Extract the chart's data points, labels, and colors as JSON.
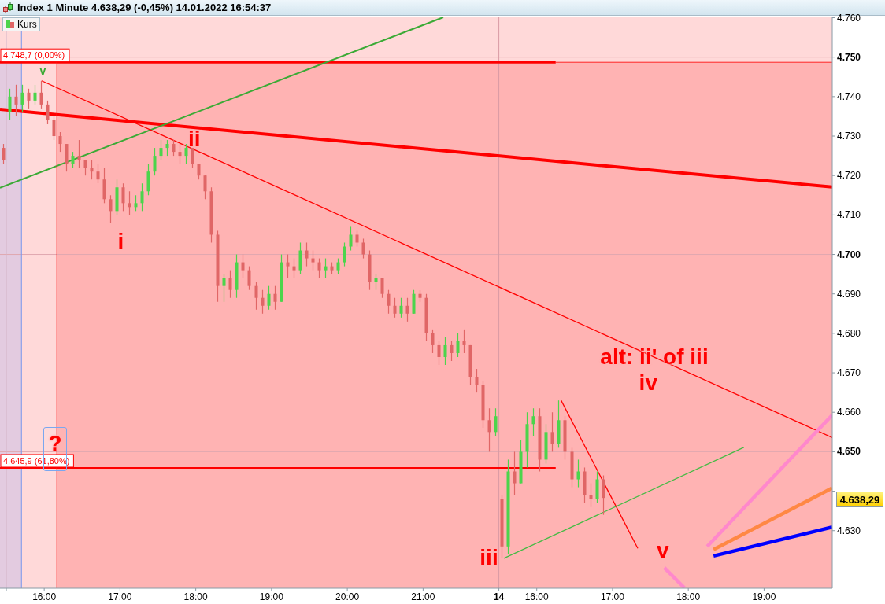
{
  "chart_data": [
    {
      "type": "candlestick",
      "title": "Index 1 Minute 4.638,29 (-0,45%) 14.01.2022 16:54:37",
      "legend": "top left",
      "tick_labels": "x",
      "xlim": [
        "2022-01-13T15:25",
        "2022-01-13T21:59"
      ],
      "xticks": [
        {
          "value": "2022-01-13T15:30",
          "label": null
        },
        {
          "value": "2022-01-13T16:00",
          "label": "16:00"
        },
        {
          "value": "2022-01-13T17:00",
          "label": "17:00"
        },
        {
          "value": "2022-01-13T18:00",
          "label": "18:00"
        },
        {
          "value": "2022-01-13T19:00",
          "label": "19:00"
        },
        {
          "value": "2022-01-13T20:00",
          "label": "20:00"
        },
        {
          "value": "2022-01-13T21:00",
          "label": "21:00"
        }
      ],
      "ylim": [
        4615.4,
        4760.3
      ],
      "series": [
        {
          "name": "Kurs",
          "x": [
            "2022-01-13T15:27",
            "2022-01-13T15:32",
            "2022-01-13T15:37",
            "2022-01-13T15:42",
            "2022-01-13T15:47",
            "2022-01-13T15:52",
            "2022-01-13T15:57",
            "2022-01-13T16:02",
            "2022-01-13T16:07",
            "2022-01-13T16:12",
            "2022-01-13T16:17",
            "2022-01-13T16:22",
            "2022-01-13T16:27",
            "2022-01-13T16:32",
            "2022-01-13T16:37",
            "2022-01-13T16:42",
            "2022-01-13T16:47",
            "2022-01-13T16:52",
            "2022-01-13T16:57",
            "2022-01-13T17:02",
            "2022-01-13T17:07",
            "2022-01-13T17:12",
            "2022-01-13T17:17",
            "2022-01-13T17:22",
            "2022-01-13T17:27",
            "2022-01-13T17:32",
            "2022-01-13T17:37",
            "2022-01-13T17:42",
            "2022-01-13T17:47",
            "2022-01-13T17:52",
            "2022-01-13T17:57",
            "2022-01-13T18:02",
            "2022-01-13T18:07",
            "2022-01-13T18:12",
            "2022-01-13T18:17",
            "2022-01-13T18:22",
            "2022-01-13T18:27",
            "2022-01-13T18:32",
            "2022-01-13T18:37",
            "2022-01-13T18:42",
            "2022-01-13T18:47",
            "2022-01-13T18:52",
            "2022-01-13T18:57",
            "2022-01-13T19:02",
            "2022-01-13T19:07",
            "2022-01-13T19:12",
            "2022-01-13T19:17",
            "2022-01-13T19:22",
            "2022-01-13T19:27",
            "2022-01-13T19:32",
            "2022-01-13T19:37",
            "2022-01-13T19:42",
            "2022-01-13T19:47",
            "2022-01-13T19:52",
            "2022-01-13T19:57",
            "2022-01-13T20:02",
            "2022-01-13T20:07",
            "2022-01-13T20:12",
            "2022-01-13T20:17",
            "2022-01-13T20:22",
            "2022-01-13T20:27",
            "2022-01-13T20:32",
            "2022-01-13T20:37",
            "2022-01-13T20:42",
            "2022-01-13T20:47",
            "2022-01-13T20:52",
            "2022-01-13T20:57",
            "2022-01-13T21:02",
            "2022-01-13T21:07",
            "2022-01-13T21:12",
            "2022-01-13T21:17",
            "2022-01-13T21:22",
            "2022-01-13T21:27",
            "2022-01-13T21:32",
            "2022-01-13T21:37",
            "2022-01-13T21:42",
            "2022-01-13T21:47",
            "2022-01-13T21:52",
            "2022-01-13T21:57"
          ],
          "ohlc": [
            [
              4727,
              4728,
              4723,
              4724
            ],
            [
              4736,
              4742,
              4734,
              4740
            ],
            [
              4740,
              4743,
              4735,
              4738
            ],
            [
              4738,
              4743,
              4736,
              4741
            ],
            [
              4741,
              4742,
              4737,
              4739
            ],
            [
              4739,
              4743,
              4738,
              4741
            ],
            [
              4741,
              4744,
              4737,
              4738
            ],
            [
              4738,
              4739,
              4733,
              4734
            ],
            [
              4734,
              4735,
              4729,
              4730
            ],
            [
              4730,
              4731,
              4726,
              4728
            ],
            [
              4728,
              4728,
              4721,
              4723
            ],
            [
              4723,
              4726,
              4722,
              4725
            ],
            [
              4725,
              4729,
              4722,
              4724
            ],
            [
              4724,
              4724,
              4720,
              4722
            ],
            [
              4722,
              4724,
              4719,
              4721
            ],
            [
              4721,
              4723,
              4718,
              4719
            ],
            [
              4719,
              4722,
              4713,
              4714
            ],
            [
              4714,
              4715,
              4708,
              4711
            ],
            [
              4711,
              4719,
              4710,
              4717
            ],
            [
              4717,
              4718,
              4711,
              4713
            ],
            [
              4713,
              4716,
              4710,
              4712
            ],
            [
              4712,
              4715,
              4711,
              4713
            ],
            [
              4713,
              4718,
              4711,
              4716
            ],
            [
              4716,
              4723,
              4715,
              4721
            ],
            [
              4721,
              4727,
              4720,
              4725
            ],
            [
              4725,
              4729,
              4724,
              4727
            ],
            [
              4727,
              4729,
              4725,
              4728
            ],
            [
              4728,
              4729,
              4725,
              4726
            ],
            [
              4726,
              4728,
              4723,
              4725
            ],
            [
              4725,
              4728,
              4723,
              4727
            ],
            [
              4727,
              4727,
              4722,
              4723
            ],
            [
              4723,
              4723,
              4719,
              4720
            ],
            [
              4720,
              4720,
              4714,
              4716
            ],
            [
              4716,
              4717,
              4703,
              4705
            ],
            [
              4705,
              4706,
              4688,
              4692
            ],
            [
              4692,
              4695,
              4688,
              4694
            ],
            [
              4694,
              4696,
              4689,
              4691
            ],
            [
              4691,
              4700,
              4689,
              4698
            ],
            [
              4698,
              4700,
              4694,
              4696
            ],
            [
              4696,
              4697,
              4691,
              4692
            ],
            [
              4692,
              4693,
              4686,
              4689
            ],
            [
              4689,
              4691,
              4685,
              4687
            ],
            [
              4687,
              4692,
              4686,
              4690
            ],
            [
              4690,
              4692,
              4686,
              4688
            ],
            [
              4688,
              4700,
              4688,
              4698
            ],
            [
              4698,
              4700,
              4694,
              4697
            ],
            [
              4697,
              4699,
              4694,
              4696
            ],
            [
              4696,
              4703,
              4695,
              4701
            ],
            [
              4701,
              4703,
              4697,
              4699
            ],
            [
              4699,
              4701,
              4696,
              4698
            ],
            [
              4698,
              4699,
              4694,
              4696
            ],
            [
              4696,
              4699,
              4694,
              4697
            ],
            [
              4697,
              4698,
              4695,
              4696
            ],
            [
              4696,
              4699,
              4695,
              4698
            ],
            [
              4698,
              4703,
              4697,
              4702
            ],
            [
              4702,
              4707,
              4701,
              4705
            ],
            [
              4705,
              4706,
              4702,
              4703
            ],
            [
              4703,
              4704,
              4699,
              4700
            ],
            [
              4700,
              4701,
              4691,
              4693
            ],
            [
              4693,
              4695,
              4691,
              4694
            ],
            [
              4694,
              4694,
              4689,
              4690
            ],
            [
              4690,
              4691,
              4685,
              4687
            ],
            [
              4687,
              4689,
              4684,
              4685
            ],
            [
              4685,
              4689,
              4684,
              4687
            ],
            [
              4687,
              4689,
              4683,
              4685
            ],
            [
              4685,
              4691,
              4685,
              4690
            ],
            [
              4690,
              4691,
              4688,
              4689
            ],
            [
              4689,
              4690,
              4678,
              4680
            ],
            [
              4680,
              4681,
              4675,
              4677
            ],
            [
              4677,
              4678,
              4672,
              4674
            ],
            [
              4674,
              4679,
              4672,
              4677
            ],
            [
              4677,
              4678,
              4673,
              4675
            ],
            [
              4675,
              4680,
              4674,
              4678
            ],
            [
              4678,
              4681,
              4675,
              4677
            ],
            [
              4677,
              4677,
              4667,
              4669
            ],
            [
              4669,
              4671,
              4665,
              4667
            ],
            [
              4667,
              4668,
              4656,
              4658
            ],
            [
              4658,
              4661,
              4650,
              4655
            ],
            [
              4655,
              4661,
              4654,
              4659
            ]
          ]
        },
        {
          "name": "4.748,7 (0,00%)",
          "type": "line",
          "color": "#ff0000",
          "x": [
            "2022-01-13T15:25",
            "2022-01-13T21:59"
          ],
          "values": [
            4748.7,
            4748.7
          ]
        },
        {
          "name": "4.645,9 (61,80%)",
          "type": "line",
          "color": "#ff0000",
          "x": [
            "2022-01-13T15:25",
            "2022-01-13T21:59"
          ],
          "values": [
            4645.9,
            4645.9
          ]
        },
        {
          "type": "line",
          "color": "#ff0000",
          "x": [
            "2022-01-13T15:25",
            "2022-01-13T21:59"
          ],
          "values": [
            4736.8,
            4725.0
          ]
        },
        {
          "type": "line",
          "color": "#3aaa35",
          "x": [
            "2022-01-13T15:25",
            "2022-01-13T21:16"
          ],
          "values": [
            4716.9,
            4760.1
          ]
        },
        {
          "type": "line",
          "color": "#ff0000",
          "x": [
            "2022-01-13T15:58",
            "2022-01-13T21:59"
          ],
          "values": [
            4744.0,
            4691.9
          ]
        },
        {
          "type": "line",
          "color": "#ff2020",
          "x": [
            "2022-01-13T16:10",
            "2022-01-13T16:10"
          ],
          "values": [
            4748.7,
            4615.4
          ]
        }
      ],
      "bands": [
        {
          "axis": "x",
          "from": "2022-01-13T15:25",
          "to": "2022-01-13T15:42",
          "color": "#e3cbe0"
        },
        {
          "axis": "x",
          "from": "2022-01-13T15:42",
          "to": "2022-01-13T16:10",
          "color": "#ffd9d9"
        },
        {
          "axis": "y",
          "from": 4748.7,
          "to": 4760.3,
          "color": "#ffd9d9"
        }
      ],
      "ref_lines": [
        {
          "axis": "y",
          "value": 4750,
          "color": "#e0a8b0"
        },
        {
          "axis": "y",
          "value": 4700,
          "color": "#e0a8b0"
        },
        {
          "axis": "y",
          "value": 4650,
          "color": "#e0a8b0"
        },
        {
          "axis": "x",
          "value": "2022-01-13T15:30",
          "color": "#d4b4c8"
        },
        {
          "axis": "x",
          "value": "2022-01-13T15:42",
          "color": "#7799ee"
        }
      ],
      "annotations": [
        "v",
        "ii",
        "i",
        "iii",
        "?"
      ]
    },
    {
      "type": "candlestick",
      "xlim": [
        "2022-01-14T15:29",
        "2022-01-14T19:54"
      ],
      "xticks": [
        {
          "value": "2022-01-14T15:30",
          "label": "14"
        },
        {
          "value": "2022-01-14T16:00",
          "label": "16:00"
        },
        {
          "value": "2022-01-14T17:00",
          "label": "17:00"
        },
        {
          "value": "2022-01-14T18:00",
          "label": "18:00"
        },
        {
          "value": "2022-01-14T19:00",
          "label": "19:00"
        }
      ],
      "ylim": [
        4615.4,
        4760.3
      ],
      "yticks": [
        {
          "value": 4630,
          "label": "4.630"
        },
        {
          "value": 4640,
          "label": null
        },
        {
          "value": 4650,
          "label": "4.650"
        },
        {
          "value": 4660,
          "label": "4.660"
        },
        {
          "value": 4670,
          "label": "4.670"
        },
        {
          "value": 4680,
          "label": "4.680"
        },
        {
          "value": 4690,
          "label": "4.690"
        },
        {
          "value": 4700,
          "label": "4.700"
        },
        {
          "value": 4710,
          "label": "4.710"
        },
        {
          "value": 4720,
          "label": "4.720"
        },
        {
          "value": 4730,
          "label": "4.730"
        },
        {
          "value": 4740,
          "label": "4.740"
        },
        {
          "value": 4750,
          "label": "4.750"
        },
        {
          "value": 4760,
          "label": "4.760"
        }
      ],
      "series": [
        {
          "x": [
            "2022-01-14T15:32",
            "2022-01-14T15:37",
            "2022-01-14T15:42",
            "2022-01-14T15:47",
            "2022-01-14T15:52",
            "2022-01-14T15:57",
            "2022-01-14T16:02",
            "2022-01-14T16:07",
            "2022-01-14T16:12",
            "2022-01-14T16:17",
            "2022-01-14T16:22",
            "2022-01-14T16:27",
            "2022-01-14T16:32",
            "2022-01-14T16:37",
            "2022-01-14T16:42",
            "2022-01-14T16:47",
            "2022-01-14T16:52"
          ],
          "ohlc": [
            [
              4638,
              4639,
              4623,
              4626
            ],
            [
              4626,
              4648,
              4624,
              4645
            ],
            [
              4645,
              4650,
              4639,
              4642
            ],
            [
              4642,
              4653,
              4642,
              4650
            ],
            [
              4650,
              4660,
              4646,
              4657
            ],
            [
              4657,
              4661,
              4654,
              4659
            ],
            [
              4659,
              4661,
              4645,
              4648
            ],
            [
              4648,
              4657,
              4647,
              4655
            ],
            [
              4655,
              4660,
              4650,
              4652
            ],
            [
              4652,
              4663,
              4651,
              4658
            ],
            [
              4658,
              4659,
              4648,
              4650
            ],
            [
              4650,
              4651,
              4641,
              4643
            ],
            [
              4643,
              4648,
              4641,
              4645
            ],
            [
              4645,
              4646,
              4637,
              4639
            ],
            [
              4639,
              4642,
              4636,
              4638
            ],
            [
              4638,
              4645,
              4637,
              4643
            ],
            [
              4643,
              4644,
              4634,
              4638.29
            ]
          ]
        },
        {
          "type": "line",
          "color": "#ff0000",
          "x": [
            "2022-01-14T15:29",
            "2022-01-14T16:15"
          ],
          "values": [
            4748.7,
            4748.7
          ]
        },
        {
          "type": "line",
          "color": "#ff2020",
          "x": [
            "2022-01-14T16:15",
            "2022-01-14T19:54"
          ],
          "values": [
            4748.7,
            4748.7
          ]
        },
        {
          "type": "line",
          "color": "#ff0000",
          "x": [
            "2022-01-14T15:29",
            "2022-01-14T16:15"
          ],
          "values": [
            4645.9,
            4645.9
          ]
        },
        {
          "type": "line",
          "color": "#ff0000",
          "x": [
            "2022-01-14T15:29",
            "2022-01-14T19:54"
          ],
          "values": [
            4725.0,
            4717.1
          ]
        },
        {
          "type": "line",
          "color": "#ff0000",
          "x": [
            "2022-01-14T15:29",
            "2022-01-14T19:54"
          ],
          "values": [
            4691.9,
            4653.6
          ]
        },
        {
          "type": "line",
          "color": "#ff0000",
          "x": [
            "2022-01-14T16:19",
            "2022-01-14T17:20"
          ],
          "values": [
            4663.2,
            4625.5
          ]
        },
        {
          "type": "line",
          "color": "#44bb44",
          "x": [
            "2022-01-14T15:34",
            "2022-01-14T18:44"
          ],
          "values": [
            4623.0,
            4651.1
          ]
        },
        {
          "type": "line",
          "color": "#ff88cc",
          "x": [
            "2022-01-14T18:15",
            "2022-01-14T19:54"
          ],
          "values": [
            4626.0,
            4659.3
          ]
        },
        {
          "type": "line",
          "color": "#ff8844",
          "x": [
            "2022-01-14T18:20",
            "2022-01-14T19:54"
          ],
          "values": [
            4625.2,
            4640.8
          ]
        },
        {
          "type": "line",
          "color": "#0000ff",
          "x": [
            "2022-01-14T18:20",
            "2022-01-14T19:54"
          ],
          "values": [
            4623.6,
            4630.9
          ]
        },
        {
          "type": "line",
          "color": "#ff88cc",
          "x": [
            "2022-01-14T17:41",
            "2022-01-14T17:57"
          ],
          "values": [
            4620.6,
            4615.5
          ]
        }
      ],
      "bands": [
        {
          "axis": "y",
          "from": 4748.7,
          "to": 4760.3,
          "color": "#ffd9d9"
        }
      ],
      "ref_lines": [
        {
          "axis": "y",
          "value": 4750,
          "color": "#e0a8b0"
        },
        {
          "axis": "y",
          "value": 4700,
          "color": "#e0a8b0"
        },
        {
          "axis": "y",
          "value": 4650,
          "color": "#e0a8b0"
        },
        {
          "axis": "x",
          "value": "2022-01-14T15:30",
          "color": "#d99aa4"
        }
      ],
      "annotations": [
        "alt: ii' of iii",
        "iv",
        "v",
        "4.638,29"
      ]
    }
  ]
}
